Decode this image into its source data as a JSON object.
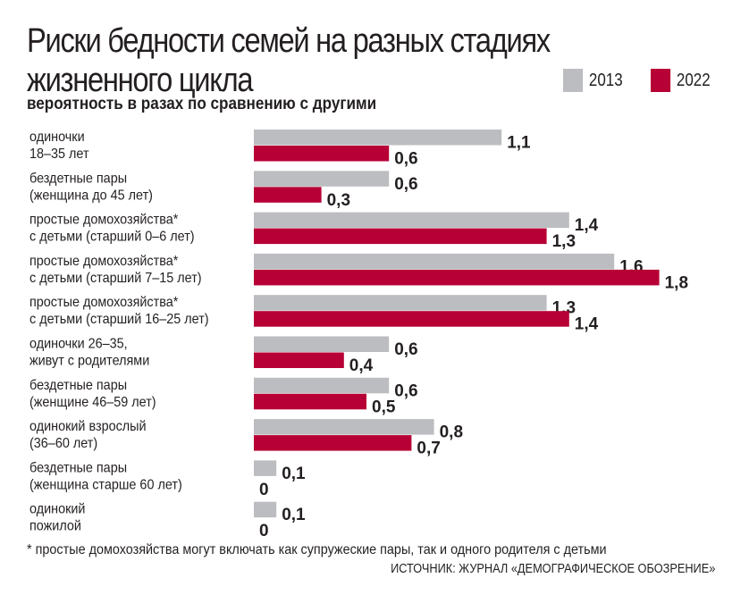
{
  "chart_data": {
    "type": "bar",
    "orientation": "horizontal",
    "title": "Риски бедности семей на разных стадиях жизненного цикла",
    "title_lines": [
      "Риски бедности семей на разных стадиях",
      "жизненного цикла"
    ],
    "subtitle": "вероятность в разах по сравнению с другими",
    "legend_placement": "top-right",
    "grid": false,
    "xlim": [
      0,
      2
    ],
    "categories": [
      [
        "одиночки",
        "18–35 лет"
      ],
      [
        "бездетные пары",
        "(женщина до 45 лет)"
      ],
      [
        "простые домохозяйства*",
        "с детьми (старший 0–6 лет)"
      ],
      [
        "простые домохозяйства*",
        "с детьми (старший 7–15 лет)"
      ],
      [
        "простые домохозяйства*",
        "с детьми (старший 16–25 лет)"
      ],
      [
        "одиночки 26–35,",
        "живут с родителями"
      ],
      [
        "бездетные пары",
        "(женщине 46–59 лет)"
      ],
      [
        "одинокий взрослый",
        "(36–60 лет)"
      ],
      [
        "бездетные пары",
        "(женщина старше 60 лет)"
      ],
      [
        "одинокий",
        "пожилой"
      ]
    ],
    "series": [
      {
        "name": "2013",
        "color": "#bcbdc0",
        "values": [
          1.1,
          0.6,
          1.4,
          1.6,
          1.3,
          0.6,
          0.6,
          0.8,
          0.1,
          0.1
        ],
        "labels": [
          "1,1",
          "0,6",
          "1,4",
          "1,6",
          "1,3",
          "0,6",
          "0,6",
          "0,8",
          "0,1",
          "0,1"
        ]
      },
      {
        "name": "2022",
        "color": "#b70035",
        "values": [
          0.6,
          0.3,
          1.3,
          1.8,
          1.4,
          0.4,
          0.5,
          0.7,
          0,
          0
        ],
        "labels": [
          "0,6",
          "0,3",
          "1,3",
          "1,8",
          "1,4",
          "0,4",
          "0,5",
          "0,7",
          "0",
          "0"
        ]
      }
    ],
    "footnote": "* простые домохозяйства могут включать как супружеские пары, так и одного родителя с детьми",
    "source": "ИСТОЧНИК: ЖУРНАЛ «ДЕМОГРАФИЧЕСКОЕ ОБОЗРЕНИЕ»"
  }
}
